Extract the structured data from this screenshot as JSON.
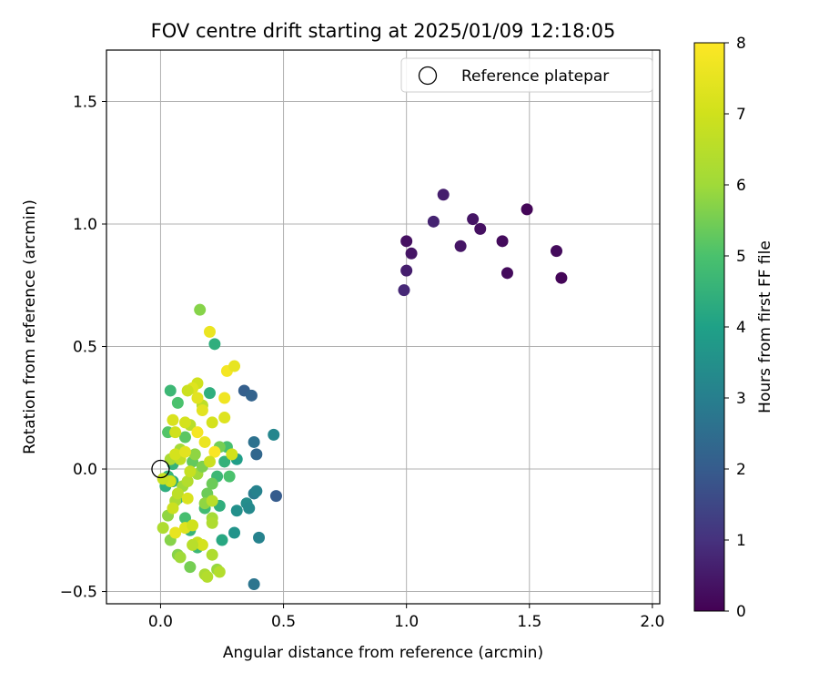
{
  "chart_data": {
    "type": "scatter",
    "title": "FOV centre drift starting at 2025/01/09 12:18:05",
    "xlabel": "Angular distance from reference (arcmin)",
    "ylabel": "Rotation from reference (arcmin)",
    "xlim": [
      -0.22,
      2.03
    ],
    "ylim": [
      -0.55,
      1.71
    ],
    "xticks": [
      0.0,
      0.5,
      1.0,
      1.5,
      2.0
    ],
    "xtick_labels": [
      "0.0",
      "0.5",
      "1.0",
      "1.5",
      "2.0"
    ],
    "yticks": [
      -0.5,
      0.0,
      0.5,
      1.0,
      1.5
    ],
    "ytick_labels": [
      "−0.5",
      "0.0",
      "0.5",
      "1.0",
      "1.5"
    ],
    "grid": true,
    "legend": {
      "position": "top-right",
      "label": "Reference platepar"
    },
    "reference_point": {
      "x": 0.0,
      "y": 0.0
    },
    "colorbar": {
      "label": "Hours from first FF file",
      "min": 0,
      "max": 8,
      "ticks": [
        0,
        1,
        2,
        3,
        4,
        5,
        6,
        7,
        8
      ],
      "colormap": "viridis"
    },
    "points": [
      {
        "x": 1.0,
        "y": 0.93,
        "c": 0.3
      },
      {
        "x": 1.02,
        "y": 0.88,
        "c": 0.4
      },
      {
        "x": 1.0,
        "y": 0.81,
        "c": 0.6
      },
      {
        "x": 0.99,
        "y": 0.73,
        "c": 0.8
      },
      {
        "x": 1.11,
        "y": 1.01,
        "c": 0.7
      },
      {
        "x": 1.15,
        "y": 1.12,
        "c": 0.6
      },
      {
        "x": 1.22,
        "y": 0.91,
        "c": 0.4
      },
      {
        "x": 1.27,
        "y": 1.02,
        "c": 0.4
      },
      {
        "x": 1.3,
        "y": 0.98,
        "c": 0.3
      },
      {
        "x": 1.39,
        "y": 0.93,
        "c": 0.2
      },
      {
        "x": 1.41,
        "y": 0.8,
        "c": 0.2
      },
      {
        "x": 1.49,
        "y": 1.06,
        "c": 0.1
      },
      {
        "x": 1.61,
        "y": 0.89,
        "c": 0.2
      },
      {
        "x": 1.63,
        "y": 0.78,
        "c": 0.1
      },
      {
        "x": 0.34,
        "y": 0.32,
        "c": 2.1
      },
      {
        "x": 0.37,
        "y": 0.3,
        "c": 2.2
      },
      {
        "x": 0.47,
        "y": -0.11,
        "c": 2.0
      },
      {
        "x": 0.39,
        "y": 0.06,
        "c": 2.3
      },
      {
        "x": 0.38,
        "y": 0.11,
        "c": 2.6
      },
      {
        "x": 0.46,
        "y": 0.14,
        "c": 3.2
      },
      {
        "x": 0.38,
        "y": -0.1,
        "c": 2.9
      },
      {
        "x": 0.39,
        "y": -0.09,
        "c": 3.1
      },
      {
        "x": 0.4,
        "y": -0.28,
        "c": 3.1
      },
      {
        "x": 0.38,
        "y": -0.47,
        "c": 2.7
      },
      {
        "x": 0.35,
        "y": -0.14,
        "c": 3.4
      },
      {
        "x": 0.31,
        "y": -0.17,
        "c": 3.5
      },
      {
        "x": 0.3,
        "y": -0.26,
        "c": 3.6
      },
      {
        "x": 0.31,
        "y": 0.04,
        "c": 3.9
      },
      {
        "x": 0.36,
        "y": -0.16,
        "c": 3.3
      },
      {
        "x": 0.24,
        "y": -0.15,
        "c": 4.4
      },
      {
        "x": 0.25,
        "y": -0.29,
        "c": 4.2
      },
      {
        "x": 0.22,
        "y": 0.51,
        "c": 4.4
      },
      {
        "x": 0.2,
        "y": 0.31,
        "c": 4.4
      },
      {
        "x": 0.26,
        "y": 0.03,
        "c": 4.5
      },
      {
        "x": 0.23,
        "y": -0.03,
        "c": 4.7
      },
      {
        "x": 0.27,
        "y": 0.09,
        "c": 4.9
      },
      {
        "x": 0.18,
        "y": -0.16,
        "c": 4.8
      },
      {
        "x": 0.15,
        "y": -0.32,
        "c": 4.7
      },
      {
        "x": 0.12,
        "y": -0.25,
        "c": 4.6
      },
      {
        "x": 0.1,
        "y": -0.2,
        "c": 4.9
      },
      {
        "x": 0.07,
        "y": -0.12,
        "c": 4.6
      },
      {
        "x": 0.05,
        "y": -0.05,
        "c": 4.3
      },
      {
        "x": 0.03,
        "y": -0.03,
        "c": 4.6
      },
      {
        "x": 0.02,
        "y": -0.07,
        "c": 4.4
      },
      {
        "x": 0.05,
        "y": 0.02,
        "c": 4.5
      },
      {
        "x": 0.04,
        "y": 0.32,
        "c": 4.7
      },
      {
        "x": 0.07,
        "y": 0.27,
        "c": 5.0
      },
      {
        "x": 0.03,
        "y": 0.15,
        "c": 5.1
      },
      {
        "x": 0.1,
        "y": 0.13,
        "c": 5.2
      },
      {
        "x": 0.13,
        "y": 0.03,
        "c": 5.3
      },
      {
        "x": 0.21,
        "y": -0.06,
        "c": 5.4
      },
      {
        "x": 0.28,
        "y": -0.03,
        "c": 5.0
      },
      {
        "x": 0.24,
        "y": 0.09,
        "c": 5.5
      },
      {
        "x": 0.19,
        "y": -0.1,
        "c": 5.4
      },
      {
        "x": 0.18,
        "y": -0.14,
        "c": 5.8
      },
      {
        "x": 0.21,
        "y": -0.2,
        "c": 6.1
      },
      {
        "x": 0.21,
        "y": -0.35,
        "c": 6.3
      },
      {
        "x": 0.23,
        "y": -0.41,
        "c": 5.9
      },
      {
        "x": 0.24,
        "y": -0.42,
        "c": 6.4
      },
      {
        "x": 0.18,
        "y": -0.43,
        "c": 6.2
      },
      {
        "x": 0.19,
        "y": -0.44,
        "c": 6.4
      },
      {
        "x": 0.12,
        "y": -0.4,
        "c": 5.5
      },
      {
        "x": 0.07,
        "y": -0.35,
        "c": 5.7
      },
      {
        "x": 0.08,
        "y": -0.36,
        "c": 6.0
      },
      {
        "x": 0.04,
        "y": -0.29,
        "c": 5.7
      },
      {
        "x": 0.01,
        "y": -0.24,
        "c": 6.3
      },
      {
        "x": 0.03,
        "y": -0.19,
        "c": 5.8
      },
      {
        "x": 0.06,
        "y": -0.13,
        "c": 6.2
      },
      {
        "x": 0.09,
        "y": -0.07,
        "c": 6.0
      },
      {
        "x": 0.11,
        "y": -0.05,
        "c": 6.4
      },
      {
        "x": 0.15,
        "y": -0.02,
        "c": 6.0
      },
      {
        "x": 0.17,
        "y": 0.01,
        "c": 5.6
      },
      {
        "x": 0.14,
        "y": 0.06,
        "c": 5.8
      },
      {
        "x": 0.08,
        "y": 0.08,
        "c": 6.1
      },
      {
        "x": 0.04,
        "y": 0.04,
        "c": 6.2
      },
      {
        "x": 0.16,
        "y": 0.65,
        "c": 5.7
      },
      {
        "x": 0.17,
        "y": 0.26,
        "c": 6.6
      },
      {
        "x": 0.12,
        "y": 0.18,
        "c": 6.5
      },
      {
        "x": 0.06,
        "y": 0.15,
        "c": 7.0
      },
      {
        "x": 0.05,
        "y": 0.2,
        "c": 7.2
      },
      {
        "x": 0.1,
        "y": 0.19,
        "c": 7.1
      },
      {
        "x": 0.15,
        "y": 0.35,
        "c": 7.0
      },
      {
        "x": 0.13,
        "y": 0.33,
        "c": 7.3
      },
      {
        "x": 0.17,
        "y": 0.24,
        "c": 7.4
      },
      {
        "x": 0.2,
        "y": 0.56,
        "c": 7.6
      },
      {
        "x": 0.27,
        "y": 0.4,
        "c": 7.8
      },
      {
        "x": 0.3,
        "y": 0.42,
        "c": 7.5
      },
      {
        "x": 0.26,
        "y": 0.29,
        "c": 7.7
      },
      {
        "x": 0.26,
        "y": 0.21,
        "c": 7.3
      },
      {
        "x": 0.21,
        "y": 0.19,
        "c": 7.1
      },
      {
        "x": 0.15,
        "y": 0.15,
        "c": 7.8
      },
      {
        "x": 0.18,
        "y": 0.11,
        "c": 7.6
      },
      {
        "x": 0.22,
        "y": 0.07,
        "c": 7.9
      },
      {
        "x": 0.29,
        "y": 0.06,
        "c": 7.0
      },
      {
        "x": 0.2,
        "y": 0.03,
        "c": 6.9
      },
      {
        "x": 0.12,
        "y": -0.01,
        "c": 6.8
      },
      {
        "x": 0.08,
        "y": 0.04,
        "c": 6.7
      },
      {
        "x": 0.06,
        "y": 0.06,
        "c": 7.1
      },
      {
        "x": 0.1,
        "y": 0.07,
        "c": 7.4
      },
      {
        "x": 0.04,
        "y": -0.05,
        "c": 7.0
      },
      {
        "x": 0.01,
        "y": -0.04,
        "c": 6.8
      },
      {
        "x": 0.07,
        "y": -0.1,
        "c": 6.6
      },
      {
        "x": 0.11,
        "y": -0.12,
        "c": 7.2
      },
      {
        "x": 0.05,
        "y": -0.16,
        "c": 6.9
      },
      {
        "x": 0.1,
        "y": -0.24,
        "c": 7.3
      },
      {
        "x": 0.13,
        "y": -0.23,
        "c": 7.0
      },
      {
        "x": 0.06,
        "y": -0.26,
        "c": 7.5
      },
      {
        "x": 0.15,
        "y": -0.3,
        "c": 6.8
      },
      {
        "x": 0.17,
        "y": -0.31,
        "c": 7.1
      },
      {
        "x": 0.13,
        "y": -0.31,
        "c": 6.5
      },
      {
        "x": 0.21,
        "y": -0.22,
        "c": 6.3
      },
      {
        "x": 0.21,
        "y": -0.13,
        "c": 6.5
      },
      {
        "x": 0.11,
        "y": 0.32,
        "c": 6.9
      },
      {
        "x": 0.15,
        "y": 0.29,
        "c": 7.4
      }
    ]
  }
}
